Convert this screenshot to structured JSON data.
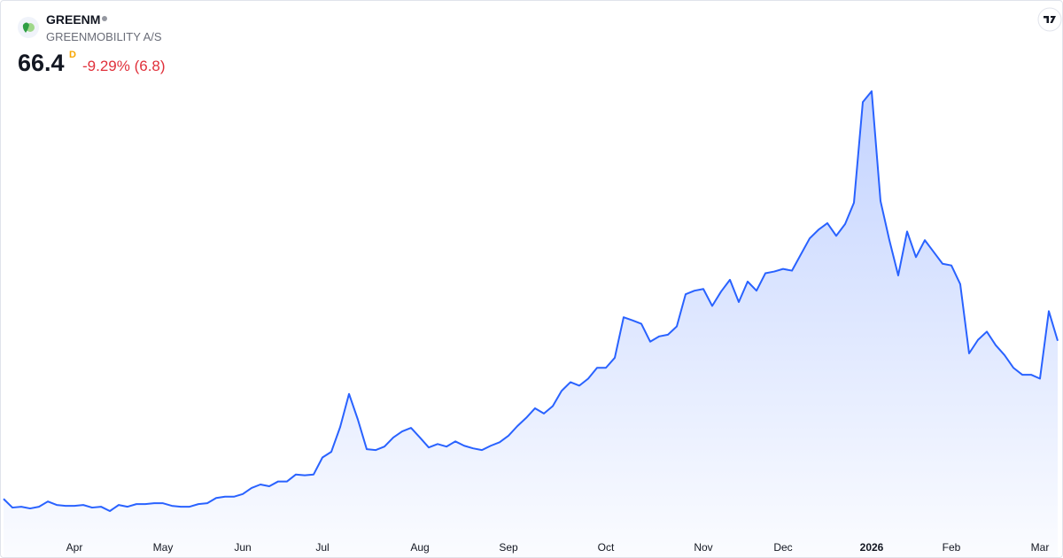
{
  "header": {
    "symbol": "GREENM",
    "name": "GREENMOBILITY A/S",
    "price": "66.4",
    "interval": "D",
    "change": "-9.29% (6.8)"
  },
  "chart_data": {
    "type": "area",
    "color": "#2962ff",
    "categories": [
      null,
      null,
      null,
      null,
      null,
      null,
      null,
      null,
      "Apr",
      null,
      null,
      null,
      null,
      null,
      null,
      null,
      null,
      null,
      "May",
      null,
      null,
      null,
      null,
      null,
      null,
      null,
      null,
      "Jun",
      null,
      null,
      null,
      null,
      null,
      null,
      null,
      null,
      "Jul",
      null,
      null,
      null,
      null,
      null,
      null,
      null,
      null,
      null,
      null,
      "Aug",
      null,
      null,
      null,
      null,
      null,
      null,
      null,
      null,
      null,
      "Sep",
      null,
      null,
      null,
      null,
      null,
      null,
      null,
      null,
      null,
      null,
      "Oct",
      null,
      null,
      null,
      null,
      null,
      null,
      null,
      null,
      null,
      null,
      "Nov",
      null,
      null,
      null,
      null,
      null,
      null,
      null,
      null,
      "Dec",
      null,
      null,
      null,
      null,
      null,
      null,
      null,
      null,
      null,
      "2026",
      null,
      null,
      null,
      null,
      null,
      null,
      null,
      null,
      "Feb",
      null,
      null,
      null,
      null,
      null,
      null,
      null,
      null,
      null,
      "Mar",
      null,
      null
    ],
    "values": [
      30.1,
      28.1,
      28.3,
      27.9,
      28.3,
      29.5,
      28.7,
      28.5,
      28.5,
      28.7,
      28.1,
      28.3,
      27.3,
      28.7,
      28.3,
      28.9,
      28.9,
      29.1,
      29.1,
      28.5,
      28.3,
      28.3,
      28.9,
      29.1,
      30.3,
      30.6,
      30.6,
      31.2,
      32.6,
      33.4,
      33.0,
      34.1,
      34.1,
      35.7,
      35.5,
      35.7,
      39.6,
      40.9,
      46.6,
      54.2,
      48.3,
      41.5,
      41.3,
      42.1,
      44.2,
      45.6,
      46.4,
      44.2,
      41.9,
      42.7,
      42.1,
      43.3,
      42.3,
      41.7,
      41.3,
      42.3,
      43.1,
      44.6,
      46.8,
      48.7,
      50.9,
      49.7,
      51.4,
      54.9,
      56.9,
      56.1,
      57.7,
      60.2,
      60.2,
      62.5,
      71.8,
      71.1,
      70.3,
      66.2,
      67.4,
      67.8,
      69.7,
      77.1,
      77.9,
      78.3,
      74.4,
      77.7,
      80.4,
      75.3,
      80.0,
      77.9,
      81.9,
      82.3,
      82.9,
      82.5,
      86.2,
      89.9,
      91.9,
      93.4,
      90.5,
      93.2,
      98.1,
      121.2,
      123.7,
      98.5,
      89.5,
      81.4,
      91.5,
      85.6,
      89.5,
      86.8,
      84.1,
      83.7,
      79.4,
      63.5,
      66.6,
      68.5,
      65.4,
      63.1,
      60.2,
      58.6,
      58.6,
      57.7,
      73.2,
      66.4
    ]
  }
}
